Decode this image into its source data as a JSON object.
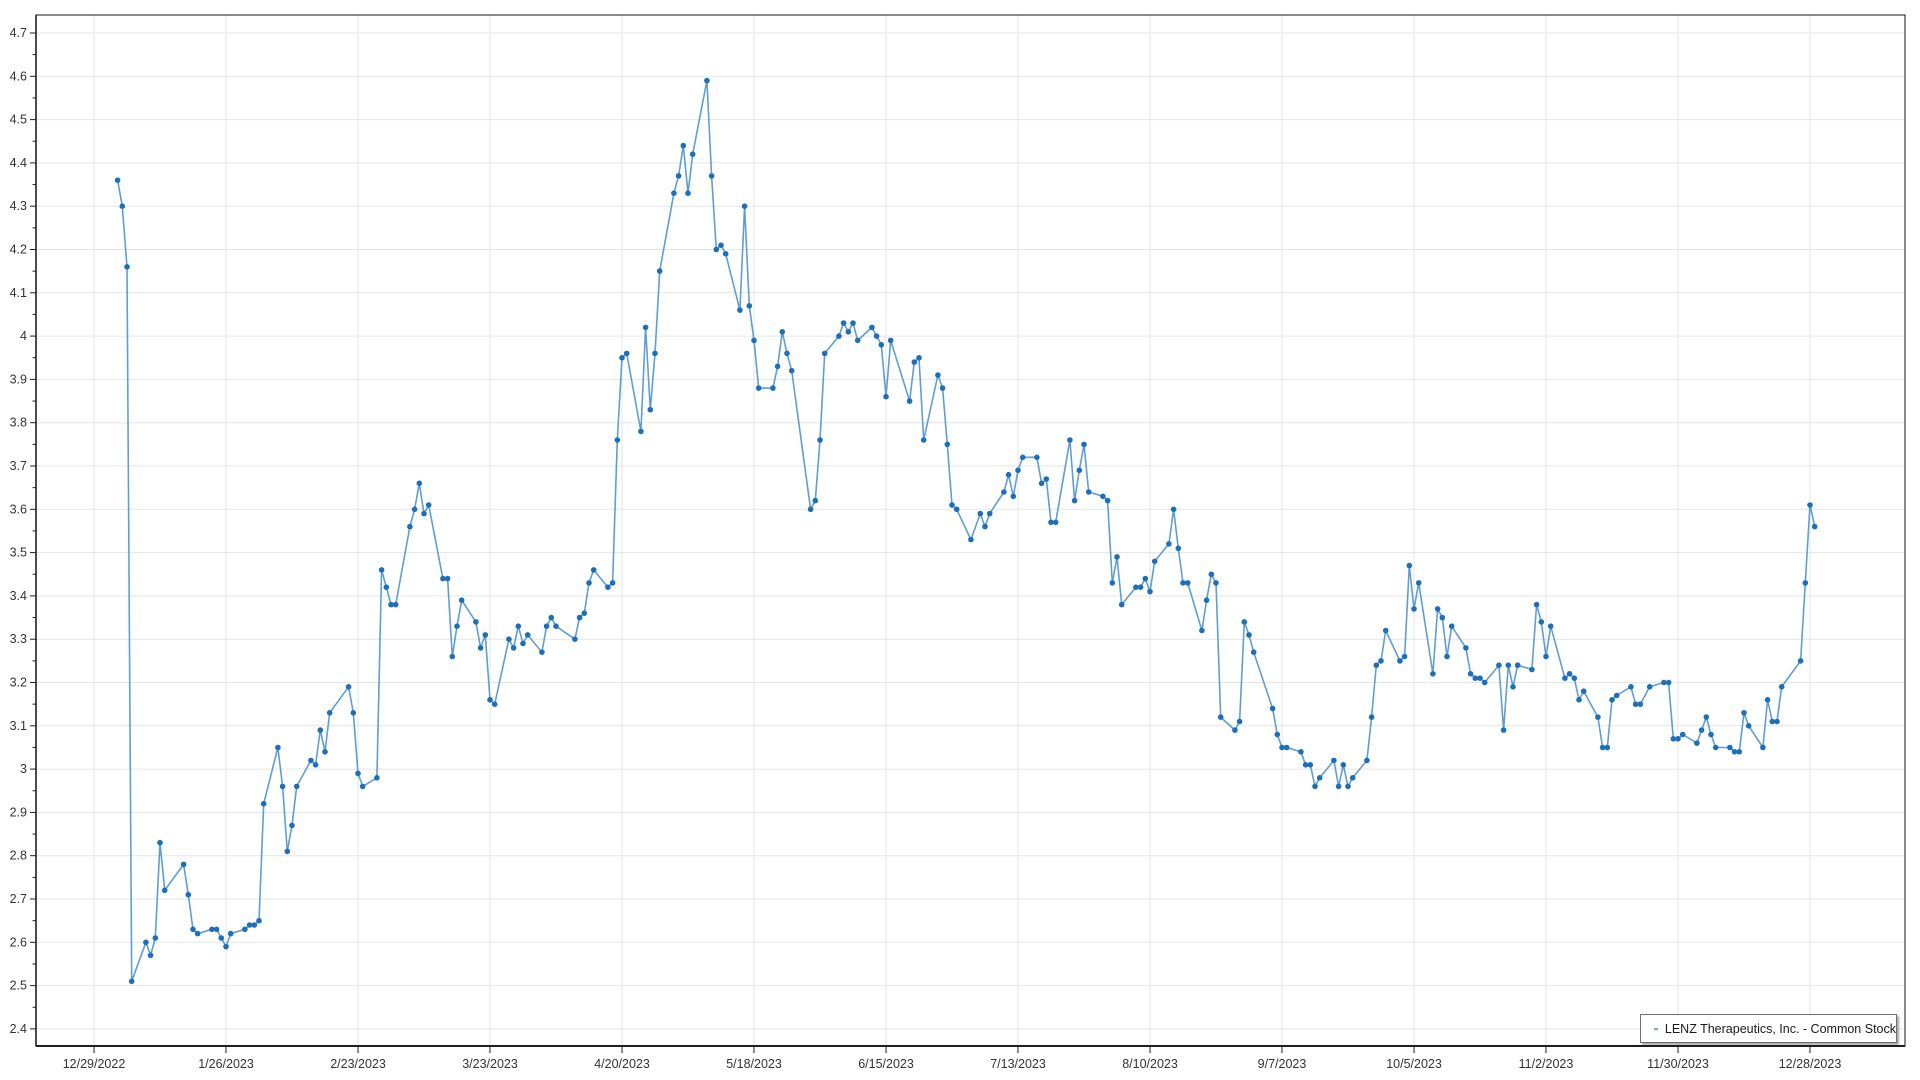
{
  "page": {
    "background": "#ffffff"
  },
  "legend": {
    "label": "LENZ Therapeutics, Inc. - Common Stock",
    "position": "bottom-right"
  },
  "colors": {
    "line": "#4f94cd",
    "marker": "#1c6fb8",
    "grid": "#e5e5e5",
    "frame": "#3c3c3c",
    "axis": "#1f1f1f",
    "tick_label": "#333333"
  },
  "chart_data": {
    "type": "line",
    "title": "",
    "xlabel": "",
    "ylabel": "",
    "series_name": "LENZ Therapeutics, Inc. - Common Stock",
    "legend_position": "bottom-right",
    "grid": true,
    "markers": true,
    "ylim": [
      2.4,
      4.7
    ],
    "y_tick_step": 0.1,
    "y_minor_tick_step": 0.05,
    "y_tick_labels": [
      "2.4",
      "2.5",
      "2.6",
      "2.7",
      "2.8",
      "2.9",
      "3",
      "3.1",
      "3.2",
      "3.3",
      "3.4",
      "3.5",
      "3.6",
      "3.7",
      "3.8",
      "3.9",
      "4",
      "4.1",
      "4.2",
      "4.3",
      "4.4",
      "4.5",
      "4.6",
      "4.7"
    ],
    "x_tick_labels": [
      "12/29/2022",
      "1/26/2023",
      "2/23/2023",
      "3/23/2023",
      "4/20/2023",
      "5/18/2023",
      "6/15/2023",
      "7/13/2023",
      "8/10/2023",
      "9/7/2023",
      "10/5/2023",
      "11/2/2023",
      "11/30/2023",
      "12/28/2023"
    ],
    "year": 2023,
    "dates": [
      "01-03",
      "01-04",
      "01-05",
      "01-06",
      "01-09",
      "01-10",
      "01-11",
      "01-12",
      "01-13",
      "01-17",
      "01-18",
      "01-19",
      "01-20",
      "01-23",
      "01-24",
      "01-25",
      "01-26",
      "01-27",
      "01-30",
      "01-31",
      "02-01",
      "02-02",
      "02-03",
      "02-06",
      "02-07",
      "02-08",
      "02-09",
      "02-10",
      "02-13",
      "02-14",
      "02-15",
      "02-16",
      "02-17",
      "02-21",
      "02-22",
      "02-23",
      "02-24",
      "02-27",
      "02-28",
      "03-01",
      "03-02",
      "03-03",
      "03-06",
      "03-07",
      "03-08",
      "03-09",
      "03-10",
      "03-13",
      "03-14",
      "03-15",
      "03-16",
      "03-17",
      "03-20",
      "03-21",
      "03-22",
      "03-23",
      "03-24",
      "03-27",
      "03-28",
      "03-29",
      "03-30",
      "03-31",
      "04-03",
      "04-04",
      "04-05",
      "04-06",
      "04-10",
      "04-11",
      "04-12",
      "04-13",
      "04-14",
      "04-17",
      "04-18",
      "04-19",
      "04-20",
      "04-21",
      "04-24",
      "04-25",
      "04-26",
      "04-27",
      "04-28",
      "05-01",
      "05-02",
      "05-03",
      "05-04",
      "05-05",
      "05-08",
      "05-09",
      "05-10",
      "05-11",
      "05-12",
      "05-15",
      "05-16",
      "05-17",
      "05-18",
      "05-19",
      "05-22",
      "05-23",
      "05-24",
      "05-25",
      "05-26",
      "05-30",
      "05-31",
      "06-01",
      "06-02",
      "06-05",
      "06-06",
      "06-07",
      "06-08",
      "06-09",
      "06-12",
      "06-13",
      "06-14",
      "06-15",
      "06-16",
      "06-20",
      "06-21",
      "06-22",
      "06-23",
      "06-26",
      "06-27",
      "06-28",
      "06-29",
      "06-30",
      "07-03",
      "07-05",
      "07-06",
      "07-07",
      "07-10",
      "07-11",
      "07-12",
      "07-13",
      "07-14",
      "07-17",
      "07-18",
      "07-19",
      "07-20",
      "07-21",
      "07-24",
      "07-25",
      "07-26",
      "07-27",
      "07-28",
      "07-31",
      "08-01",
      "08-02",
      "08-03",
      "08-04",
      "08-07",
      "08-08",
      "08-09",
      "08-10",
      "08-11",
      "08-14",
      "08-15",
      "08-16",
      "08-17",
      "08-18",
      "08-21",
      "08-22",
      "08-23",
      "08-24",
      "08-25",
      "08-28",
      "08-29",
      "08-30",
      "08-31",
      "09-01",
      "09-05",
      "09-06",
      "09-07",
      "09-08",
      "09-11",
      "09-12",
      "09-13",
      "09-14",
      "09-15",
      "09-18",
      "09-19",
      "09-20",
      "09-21",
      "09-22",
      "09-25",
      "09-26",
      "09-27",
      "09-28",
      "09-29",
      "10-02",
      "10-03",
      "10-04",
      "10-05",
      "10-06",
      "10-09",
      "10-10",
      "10-11",
      "10-12",
      "10-13",
      "10-16",
      "10-17",
      "10-18",
      "10-19",
      "10-20",
      "10-23",
      "10-24",
      "10-25",
      "10-26",
      "10-27",
      "10-30",
      "10-31",
      "11-01",
      "11-02",
      "11-03",
      "11-06",
      "11-07",
      "11-08",
      "11-09",
      "11-10",
      "11-13",
      "11-14",
      "11-15",
      "11-16",
      "11-17",
      "11-20",
      "11-21",
      "11-22",
      "11-24",
      "11-27",
      "11-28",
      "11-29",
      "11-30",
      "12-01",
      "12-04",
      "12-05",
      "12-06",
      "12-07",
      "12-08",
      "12-11",
      "12-12",
      "12-13",
      "12-14",
      "12-15",
      "12-18",
      "12-19",
      "12-20",
      "12-21",
      "12-22",
      "12-26",
      "12-27",
      "12-28",
      "12-29"
    ],
    "values": [
      4.36,
      4.3,
      4.16,
      2.51,
      2.6,
      2.57,
      2.61,
      2.83,
      2.72,
      2.78,
      2.71,
      2.63,
      2.62,
      2.63,
      2.63,
      2.61,
      2.59,
      2.62,
      2.63,
      2.64,
      2.64,
      2.65,
      2.92,
      3.05,
      2.96,
      2.81,
      2.87,
      2.96,
      3.02,
      3.01,
      3.09,
      3.04,
      3.13,
      3.19,
      3.13,
      2.99,
      2.96,
      2.98,
      3.46,
      3.42,
      3.38,
      3.38,
      3.56,
      3.6,
      3.66,
      3.59,
      3.61,
      3.44,
      3.44,
      3.26,
      3.33,
      3.39,
      3.34,
      3.28,
      3.31,
      3.16,
      3.15,
      3.3,
      3.28,
      3.33,
      3.29,
      3.31,
      3.27,
      3.33,
      3.35,
      3.33,
      3.3,
      3.35,
      3.36,
      3.43,
      3.46,
      3.42,
      3.43,
      3.76,
      3.95,
      3.96,
      3.78,
      4.02,
      3.83,
      3.96,
      4.15,
      4.33,
      4.37,
      4.44,
      4.33,
      4.42,
      4.59,
      4.37,
      4.2,
      4.21,
      4.19,
      4.06,
      4.3,
      4.07,
      3.99,
      3.88,
      3.88,
      3.93,
      4.01,
      3.96,
      3.92,
      3.6,
      3.62,
      3.76,
      3.96,
      4.0,
      4.03,
      4.01,
      4.03,
      3.99,
      4.02,
      4.0,
      3.98,
      3.86,
      3.99,
      3.85,
      3.94,
      3.95,
      3.76,
      3.91,
      3.88,
      3.75,
      3.61,
      3.6,
      3.53,
      3.59,
      3.56,
      3.59,
      3.64,
      3.68,
      3.63,
      3.69,
      3.72,
      3.72,
      3.66,
      3.67,
      3.57,
      3.57,
      3.76,
      3.62,
      3.69,
      3.75,
      3.64,
      3.63,
      3.62,
      3.43,
      3.49,
      3.38,
      3.42,
      3.42,
      3.44,
      3.41,
      3.48,
      3.52,
      3.6,
      3.51,
      3.43,
      3.43,
      3.32,
      3.39,
      3.45,
      3.43,
      3.12,
      3.09,
      3.11,
      3.34,
      3.31,
      3.27,
      3.14,
      3.08,
      3.05,
      3.05,
      3.04,
      3.01,
      3.01,
      2.96,
      2.98,
      3.02,
      2.96,
      3.01,
      2.96,
      2.98,
      3.02,
      3.12,
      3.24,
      3.25,
      3.32,
      3.25,
      3.26,
      3.47,
      3.37,
      3.43,
      3.22,
      3.37,
      3.35,
      3.26,
      3.33,
      3.28,
      3.22,
      3.21,
      3.21,
      3.2,
      3.24,
      3.09,
      3.24,
      3.19,
      3.24,
      3.23,
      3.38,
      3.34,
      3.26,
      3.33,
      3.21,
      3.22,
      3.21,
      3.16,
      3.18,
      3.12,
      3.05,
      3.05,
      3.16,
      3.17,
      3.19,
      3.15,
      3.15,
      3.19,
      3.2,
      3.2,
      3.07,
      3.07,
      3.08,
      3.06,
      3.09,
      3.12,
      3.08,
      3.05,
      3.05,
      3.04,
      3.04,
      3.13,
      3.1,
      3.05,
      3.16,
      3.11,
      3.11,
      3.19,
      3.25,
      3.43,
      3.61,
      3.56
    ]
  }
}
